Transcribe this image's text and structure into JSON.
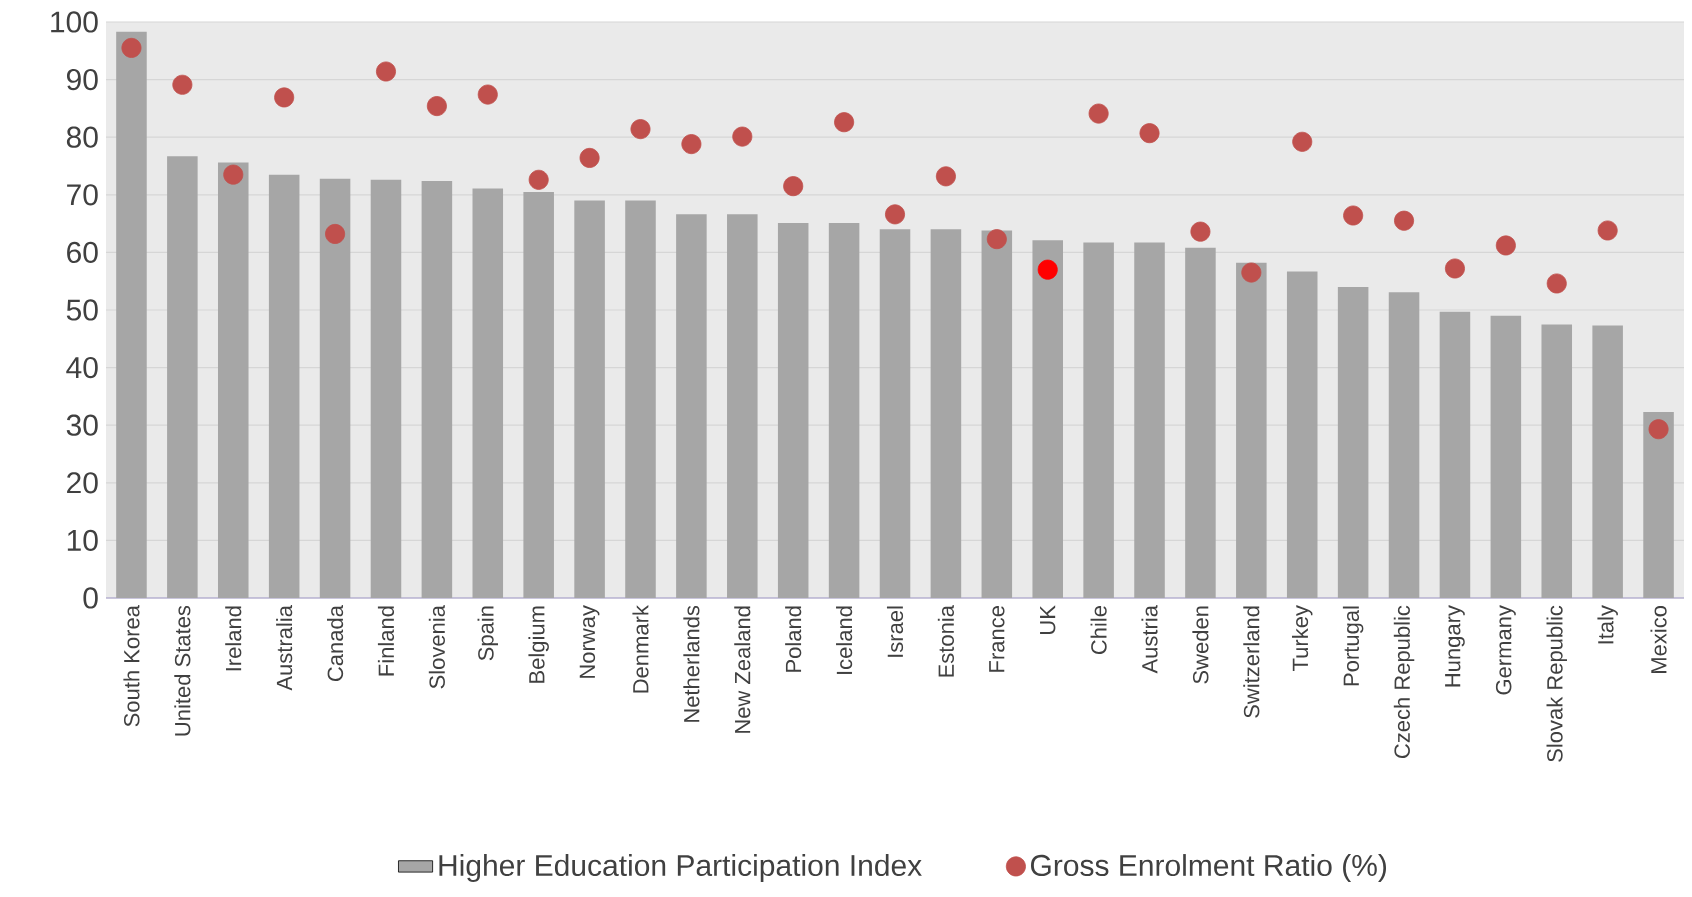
{
  "chart_data": {
    "type": "bar",
    "categories": [
      "South Korea",
      "United States",
      "Ireland",
      "Australia",
      "Canada",
      "Finland",
      "Slovenia",
      "Spain",
      "Belgium",
      "Norway",
      "Denmark",
      "Netherlands",
      "New Zealand",
      "Poland",
      "Iceland",
      "Israel",
      "Estonia",
      "France",
      "UK",
      "Chile",
      "Austria",
      "Sweden",
      "Switzerland",
      "Turkey",
      "Portugal",
      "Czech Republic",
      "Hungary",
      "Germany",
      "Slovak Republic",
      "Italy",
      "Mexico"
    ],
    "series": [
      {
        "name": "Higher Education Participation Index",
        "color": "#a6a6a6",
        "values": [
          98.3,
          76.7,
          75.6,
          73.5,
          72.8,
          72.6,
          72.4,
          71.1,
          70.5,
          69.0,
          69.0,
          66.6,
          66.6,
          65.1,
          65.1,
          64.0,
          64.0,
          63.8,
          62.1,
          61.7,
          61.7,
          60.8,
          58.2,
          56.7,
          54.0,
          53.1,
          49.7,
          49.0,
          47.5,
          47.3,
          32.3
        ]
      },
      {
        "type": "scatter",
        "name": "Gross Enrolment Ratio (%)",
        "color": "#c0504d",
        "marker": "circle",
        "x": [
          "South Korea",
          "United States",
          "Ireland",
          "Australia",
          "Canada",
          "Finland",
          "Slovenia",
          "Spain",
          "Belgium",
          "Norway",
          "Denmark",
          "Netherlands",
          "New Zealand",
          "Poland",
          "Iceland",
          "Israel",
          "Estonia",
          "France",
          "UK",
          "Chile",
          "Austria",
          "Sweden",
          "Switzerland",
          "Turkey",
          "Portugal",
          "Czech Republic",
          "Hungary",
          "Germany",
          "Slovak Republic",
          "Italy",
          "Mexico"
        ],
        "colors": [
          "#c0504d",
          "#c0504d",
          "#c0504d",
          "#c0504d",
          "#c0504d",
          "#c0504d",
          "#c0504d",
          "#c0504d",
          "#c0504d",
          "#c0504d",
          "#c0504d",
          "#c0504d",
          "#c0504d",
          "#c0504d",
          "#c0504d",
          "#c0504d",
          "#c0504d",
          "#c0504d",
          "#ff0000",
          "#c0504d",
          "#c0504d",
          "#c0504d",
          "#c0504d",
          "#c0504d",
          "#c0504d",
          "#c0504d",
          "#c0504d",
          "#c0504d",
          "#c0504d",
          "#c0504d",
          "#c0504d"
        ],
        "values": [
          95.5,
          89.1,
          73.5,
          86.9,
          63.2,
          91.4,
          85.4,
          87.4,
          72.6,
          76.4,
          81.4,
          78.8,
          80.1,
          71.5,
          82.6,
          66.6,
          73.2,
          62.3,
          57.0,
          84.1,
          80.7,
          63.6,
          56.5,
          79.2,
          66.4,
          65.5,
          57.2,
          61.2,
          54.6,
          63.8,
          29.3
        ]
      }
    ],
    "ylim": [
      0,
      100
    ],
    "yticks": [
      0,
      10,
      20,
      30,
      40,
      50,
      60,
      70,
      80,
      90,
      100
    ],
    "grid": "y",
    "legend": "bottom"
  }
}
